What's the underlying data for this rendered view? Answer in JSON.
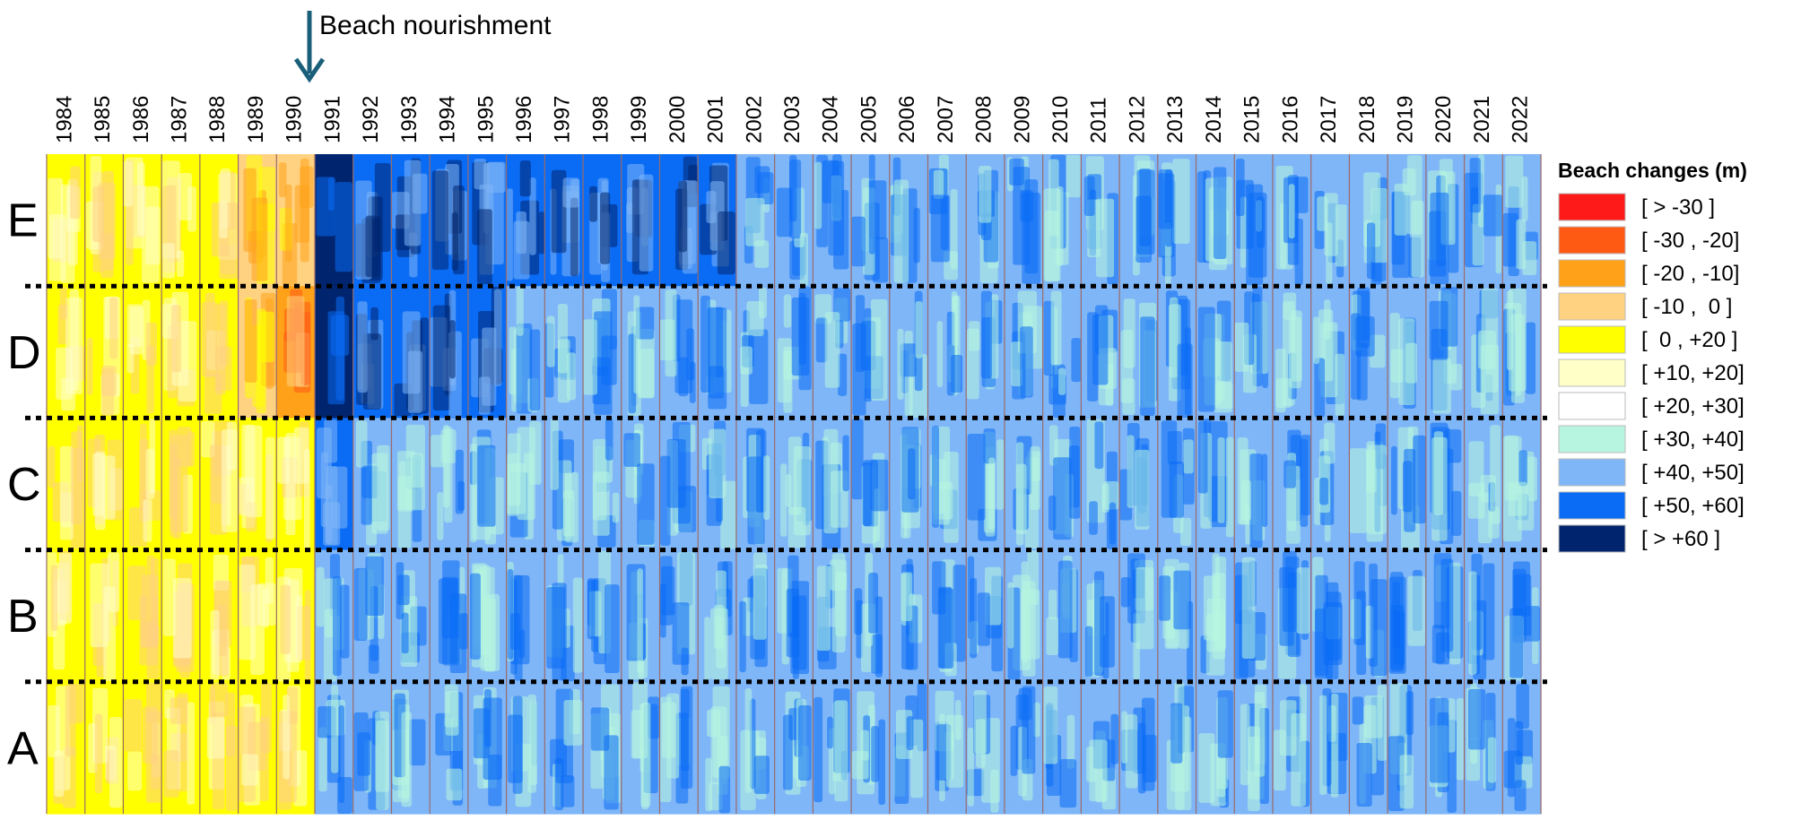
{
  "chart_data": {
    "type": "heatmap",
    "title": "",
    "annotation": "Beach nourishment",
    "annotation_year": "1991",
    "years": [
      "1984",
      "1985",
      "1986",
      "1987",
      "1988",
      "1989",
      "1990",
      "1991",
      "1992",
      "1993",
      "1994",
      "1995",
      "1996",
      "1997",
      "1998",
      "1999",
      "2000",
      "2001",
      "2002",
      "2003",
      "2004",
      "2005",
      "2006",
      "2007",
      "2008",
      "2009",
      "2010",
      "2011",
      "2012",
      "2013",
      "2014",
      "2015",
      "2016",
      "2017",
      "2018",
      "2019",
      "2020",
      "2021",
      "2022"
    ],
    "sectors": [
      "E",
      "D",
      "C",
      "B",
      "A"
    ],
    "legend": {
      "title": "Beach changes (m)",
      "entries": [
        {
          "label": "[ > -30 ]",
          "color": "#ff1a1a"
        },
        {
          "label": "[ -30 , -20]",
          "color": "#ff5a14"
        },
        {
          "label": "[ -20 , -10]",
          "color": "#ffa21a"
        },
        {
          "label": "[ -10 ,  0 ]",
          "color": "#ffd282"
        },
        {
          "label": "[  0 , +20 ]",
          "color": "#ffff00"
        },
        {
          "label": "[ +10, +20]",
          "color": "#ffffc8"
        },
        {
          "label": "[ +20, +30]",
          "color": "#ffffff"
        },
        {
          "label": "[ +30, +40]",
          "color": "#b8f5e0"
        },
        {
          "label": "[ +40, +50]",
          "color": "#7fb6f7"
        },
        {
          "label": "[ +50, +60]",
          "color": "#0a6cf5"
        },
        {
          "label": "[ > +60 ]",
          "color": "#00256e"
        }
      ]
    },
    "sector_class_by_year": {
      "note": "dominant change class index (into legend.entries) per sector for each year, rows E,D,C,B,A",
      "E": [
        4,
        4,
        4,
        4,
        4,
        3,
        3,
        10,
        9,
        9,
        9,
        9,
        9,
        9,
        9,
        9,
        9,
        9,
        8,
        8,
        8,
        8,
        8,
        8,
        8,
        8,
        8,
        8,
        8,
        8,
        8,
        8,
        8,
        8,
        8,
        8,
        8,
        8,
        8
      ],
      "D": [
        4,
        4,
        4,
        4,
        4,
        3,
        2,
        10,
        9,
        9,
        9,
        9,
        8,
        8,
        8,
        8,
        8,
        8,
        8,
        8,
        8,
        8,
        8,
        8,
        8,
        8,
        8,
        8,
        8,
        8,
        8,
        8,
        8,
        8,
        8,
        8,
        8,
        8,
        8
      ],
      "C": [
        4,
        4,
        4,
        4,
        4,
        4,
        4,
        9,
        8,
        8,
        8,
        8,
        8,
        8,
        8,
        8,
        8,
        8,
        8,
        8,
        8,
        8,
        8,
        8,
        8,
        8,
        8,
        8,
        8,
        8,
        8,
        8,
        8,
        8,
        8,
        8,
        8,
        8,
        8
      ],
      "B": [
        4,
        4,
        4,
        4,
        4,
        4,
        4,
        8,
        8,
        8,
        8,
        8,
        8,
        8,
        8,
        8,
        8,
        8,
        8,
        8,
        8,
        8,
        8,
        8,
        8,
        8,
        8,
        8,
        8,
        8,
        8,
        8,
        8,
        8,
        8,
        8,
        8,
        8,
        8
      ],
      "A": [
        4,
        4,
        4,
        4,
        4,
        4,
        4,
        8,
        8,
        8,
        8,
        8,
        8,
        8,
        8,
        8,
        8,
        8,
        8,
        8,
        8,
        8,
        8,
        8,
        8,
        8,
        8,
        8,
        8,
        8,
        8,
        8,
        8,
        8,
        8,
        8,
        8,
        8,
        8
      ]
    }
  }
}
